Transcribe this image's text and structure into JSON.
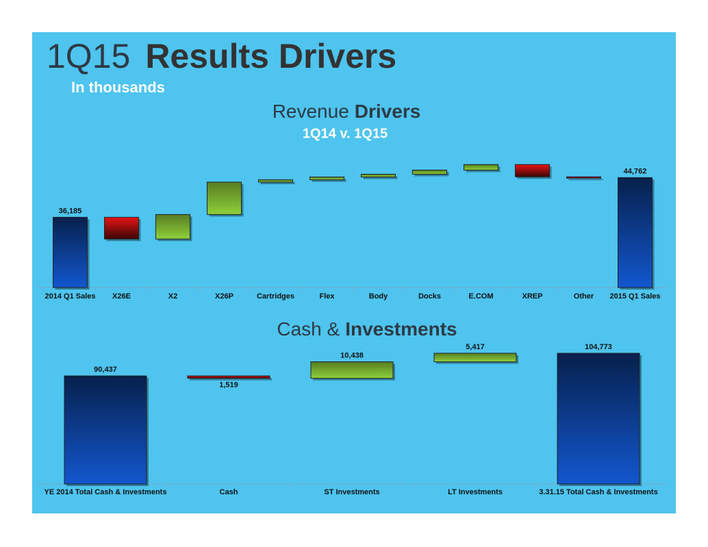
{
  "header": {
    "title_light": "1Q15",
    "title_bold": "Results Drivers",
    "subtitle": "In thousands"
  },
  "chart_data": [
    {
      "type": "waterfall",
      "title": "Revenue",
      "title_emphasis": "Drivers",
      "subtitle": "1Q14 v. 1Q15",
      "categories": [
        "2014 Q1 Sales",
        "X26E",
        "X2",
        "X26P",
        "Cartridges",
        "Flex",
        "Body",
        "Docks",
        "E.COM",
        "XREP",
        "Other",
        "2015 Q1 Sales"
      ],
      "measure": [
        "total",
        "relative",
        "relative",
        "relative",
        "relative",
        "relative",
        "relative",
        "relative",
        "relative",
        "relative",
        "relative",
        "total"
      ],
      "values": [
        36185,
        -4700,
        5300,
        7000,
        500,
        600,
        600,
        900,
        1200,
        -2650,
        -173,
        44762
      ],
      "value_labels": [
        "36,185",
        null,
        null,
        null,
        null,
        null,
        null,
        null,
        null,
        null,
        null,
        "44,762"
      ],
      "colors": {
        "total": "#0c3a8a",
        "increase": "#8fd03a",
        "decrease": "#e81414"
      },
      "ylim": [
        21000,
        50000
      ]
    },
    {
      "type": "waterfall",
      "title": "Cash &",
      "title_emphasis": "Investments",
      "categories": [
        "YE 2014 Total Cash & Investments",
        "Cash",
        "ST Investments",
        "LT Investments",
        "3.31.15 Total Cash & Investments"
      ],
      "measure": [
        "total",
        "relative",
        "relative",
        "relative",
        "total"
      ],
      "values": [
        90437,
        -1519,
        10438,
        5417,
        104773
      ],
      "value_labels": [
        "90,437",
        "1,519",
        "10,438",
        "5,417",
        "104,773"
      ],
      "colors": {
        "total": "#0c3a8a",
        "increase": "#8fd03a",
        "decrease": "#e81414"
      },
      "ylim": [
        22000,
        113000
      ]
    }
  ]
}
